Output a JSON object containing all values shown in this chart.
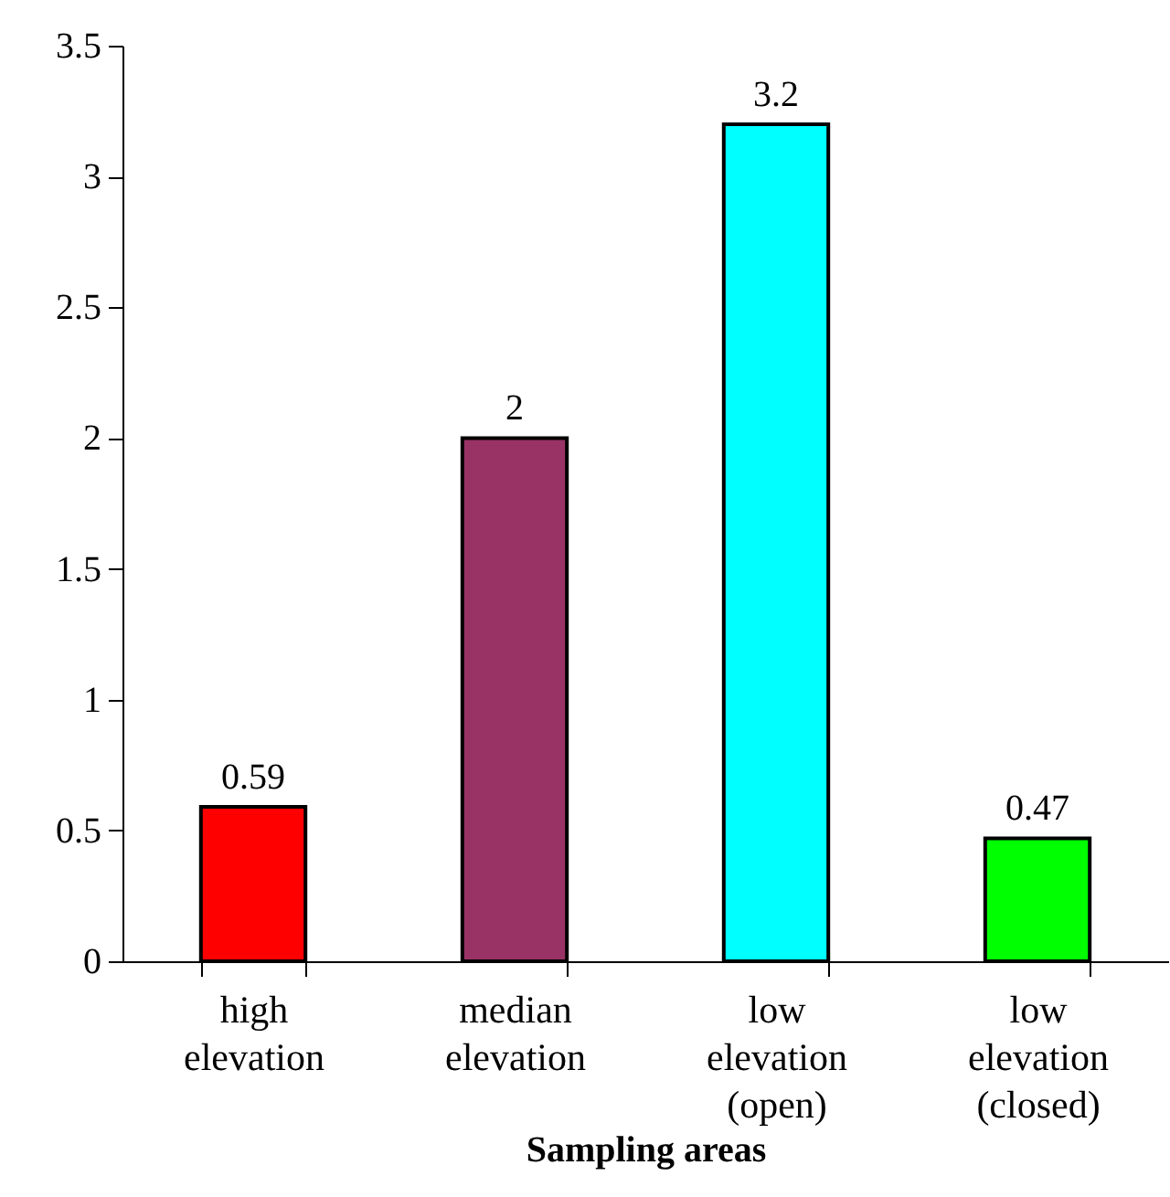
{
  "chart_data": {
    "type": "bar",
    "xlabel": "Sampling areas",
    "categories": [
      "high elevation",
      "median elevation",
      "low elevation (open)",
      "low elevation (closed)"
    ],
    "values": [
      0.59,
      2,
      3.2,
      0.47
    ],
    "colors": [
      "#ff0000",
      "#993366",
      "#00ffff",
      "#00ff00"
    ],
    "ylim": [
      0,
      3.5
    ],
    "yticks": [
      0,
      0.5,
      1,
      1.5,
      2,
      2.5,
      3,
      3.5
    ],
    "data_labels": true,
    "grid": false,
    "legend": false
  }
}
